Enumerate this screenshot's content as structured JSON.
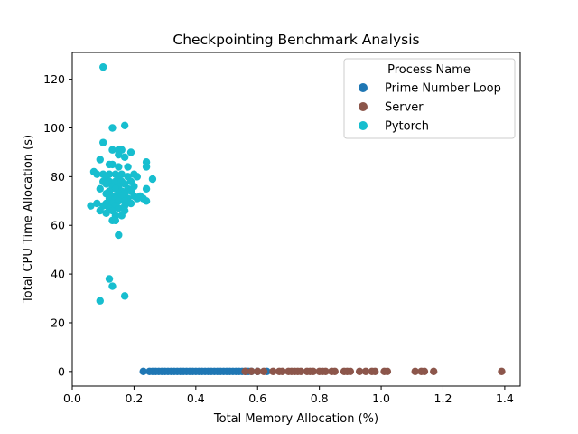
{
  "chart_data": {
    "type": "scatter",
    "title": "Checkpointing Benchmark Analysis",
    "xlabel": "Total Memory Allocation (%)",
    "ylabel": "Total CPU Time Allocation (s)",
    "xlim": [
      0.0,
      1.45
    ],
    "ylim": [
      -6,
      131
    ],
    "xticks": [
      "0.0",
      "0.2",
      "0.4",
      "0.6",
      "0.8",
      "1.0",
      "1.2",
      "1.4"
    ],
    "yticks": [
      "0",
      "20",
      "40",
      "60",
      "80",
      "100",
      "120"
    ],
    "grid": false,
    "legend": {
      "title": "Process Name",
      "placement": "top-right"
    },
    "series": [
      {
        "name": "Prime Number Loop",
        "color": "#1f77b4",
        "points": [
          [
            0.23,
            0
          ],
          [
            0.25,
            0
          ],
          [
            0.26,
            0
          ],
          [
            0.27,
            0
          ],
          [
            0.28,
            0
          ],
          [
            0.29,
            0
          ],
          [
            0.3,
            0
          ],
          [
            0.31,
            0
          ],
          [
            0.32,
            0
          ],
          [
            0.33,
            0
          ],
          [
            0.34,
            0
          ],
          [
            0.35,
            0
          ],
          [
            0.36,
            0
          ],
          [
            0.37,
            0
          ],
          [
            0.38,
            0
          ],
          [
            0.39,
            0
          ],
          [
            0.4,
            0
          ],
          [
            0.41,
            0
          ],
          [
            0.42,
            0
          ],
          [
            0.43,
            0
          ],
          [
            0.44,
            0
          ],
          [
            0.45,
            0
          ],
          [
            0.46,
            0
          ],
          [
            0.47,
            0
          ],
          [
            0.48,
            0
          ],
          [
            0.49,
            0
          ],
          [
            0.5,
            0
          ],
          [
            0.51,
            0
          ],
          [
            0.52,
            0
          ],
          [
            0.53,
            0
          ],
          [
            0.54,
            0
          ],
          [
            0.55,
            0
          ],
          [
            0.56,
            0
          ],
          [
            0.57,
            0
          ],
          [
            0.58,
            0
          ],
          [
            0.6,
            0
          ],
          [
            0.63,
            0
          ]
        ]
      },
      {
        "name": "Server",
        "color": "#8c564b",
        "points": [
          [
            0.56,
            0
          ],
          [
            0.58,
            0
          ],
          [
            0.6,
            0
          ],
          [
            0.62,
            0
          ],
          [
            0.65,
            0
          ],
          [
            0.67,
            0
          ],
          [
            0.68,
            0
          ],
          [
            0.7,
            0
          ],
          [
            0.71,
            0
          ],
          [
            0.72,
            0
          ],
          [
            0.73,
            0
          ],
          [
            0.74,
            0
          ],
          [
            0.76,
            0
          ],
          [
            0.77,
            0
          ],
          [
            0.78,
            0
          ],
          [
            0.8,
            0
          ],
          [
            0.81,
            0
          ],
          [
            0.82,
            0
          ],
          [
            0.84,
            0
          ],
          [
            0.85,
            0
          ],
          [
            0.88,
            0
          ],
          [
            0.89,
            0
          ],
          [
            0.9,
            0
          ],
          [
            0.93,
            0
          ],
          [
            0.95,
            0
          ],
          [
            0.97,
            0
          ],
          [
            0.98,
            0
          ],
          [
            1.01,
            0
          ],
          [
            1.02,
            0
          ],
          [
            1.11,
            0
          ],
          [
            1.13,
            0
          ],
          [
            1.14,
            0
          ],
          [
            1.17,
            0
          ],
          [
            1.39,
            0
          ]
        ]
      },
      {
        "name": "Pytorch",
        "color": "#17becf",
        "points": [
          [
            0.1,
            125
          ],
          [
            0.17,
            101
          ],
          [
            0.13,
            100
          ],
          [
            0.1,
            94
          ],
          [
            0.13,
            91
          ],
          [
            0.15,
            91
          ],
          [
            0.16,
            91
          ],
          [
            0.19,
            90
          ],
          [
            0.15,
            89
          ],
          [
            0.17,
            88
          ],
          [
            0.09,
            87
          ],
          [
            0.24,
            86
          ],
          [
            0.12,
            85
          ],
          [
            0.13,
            85
          ],
          [
            0.15,
            84
          ],
          [
            0.18,
            84
          ],
          [
            0.24,
            84
          ],
          [
            0.07,
            82
          ],
          [
            0.08,
            81
          ],
          [
            0.1,
            81
          ],
          [
            0.12,
            81
          ],
          [
            0.14,
            81
          ],
          [
            0.16,
            81
          ],
          [
            0.2,
            81
          ],
          [
            0.11,
            80
          ],
          [
            0.15,
            80
          ],
          [
            0.18,
            80
          ],
          [
            0.21,
            80
          ],
          [
            0.26,
            79
          ],
          [
            0.1,
            78
          ],
          [
            0.12,
            78
          ],
          [
            0.14,
            78
          ],
          [
            0.16,
            78
          ],
          [
            0.19,
            78
          ],
          [
            0.11,
            77
          ],
          [
            0.17,
            77
          ],
          [
            0.13,
            76
          ],
          [
            0.15,
            76
          ],
          [
            0.2,
            76
          ],
          [
            0.09,
            75
          ],
          [
            0.14,
            75
          ],
          [
            0.18,
            75
          ],
          [
            0.24,
            75
          ],
          [
            0.12,
            74
          ],
          [
            0.16,
            74
          ],
          [
            0.19,
            74
          ],
          [
            0.11,
            73
          ],
          [
            0.15,
            73
          ],
          [
            0.17,
            73
          ],
          [
            0.13,
            72
          ],
          [
            0.16,
            72
          ],
          [
            0.2,
            72
          ],
          [
            0.22,
            72
          ],
          [
            0.12,
            71
          ],
          [
            0.14,
            71
          ],
          [
            0.18,
            71
          ],
          [
            0.21,
            71
          ],
          [
            0.23,
            71
          ],
          [
            0.15,
            70
          ],
          [
            0.17,
            70
          ],
          [
            0.24,
            70
          ],
          [
            0.08,
            69
          ],
          [
            0.11,
            69
          ],
          [
            0.13,
            69
          ],
          [
            0.19,
            69
          ],
          [
            0.06,
            68
          ],
          [
            0.1,
            68
          ],
          [
            0.14,
            68
          ],
          [
            0.17,
            68
          ],
          [
            0.12,
            67
          ],
          [
            0.15,
            67
          ],
          [
            0.09,
            66
          ],
          [
            0.13,
            66
          ],
          [
            0.17,
            66
          ],
          [
            0.11,
            65
          ],
          [
            0.14,
            64
          ],
          [
            0.16,
            64
          ],
          [
            0.13,
            62
          ],
          [
            0.14,
            62
          ],
          [
            0.15,
            56
          ],
          [
            0.12,
            38
          ],
          [
            0.13,
            35
          ],
          [
            0.17,
            31
          ],
          [
            0.09,
            29
          ]
        ]
      }
    ]
  }
}
